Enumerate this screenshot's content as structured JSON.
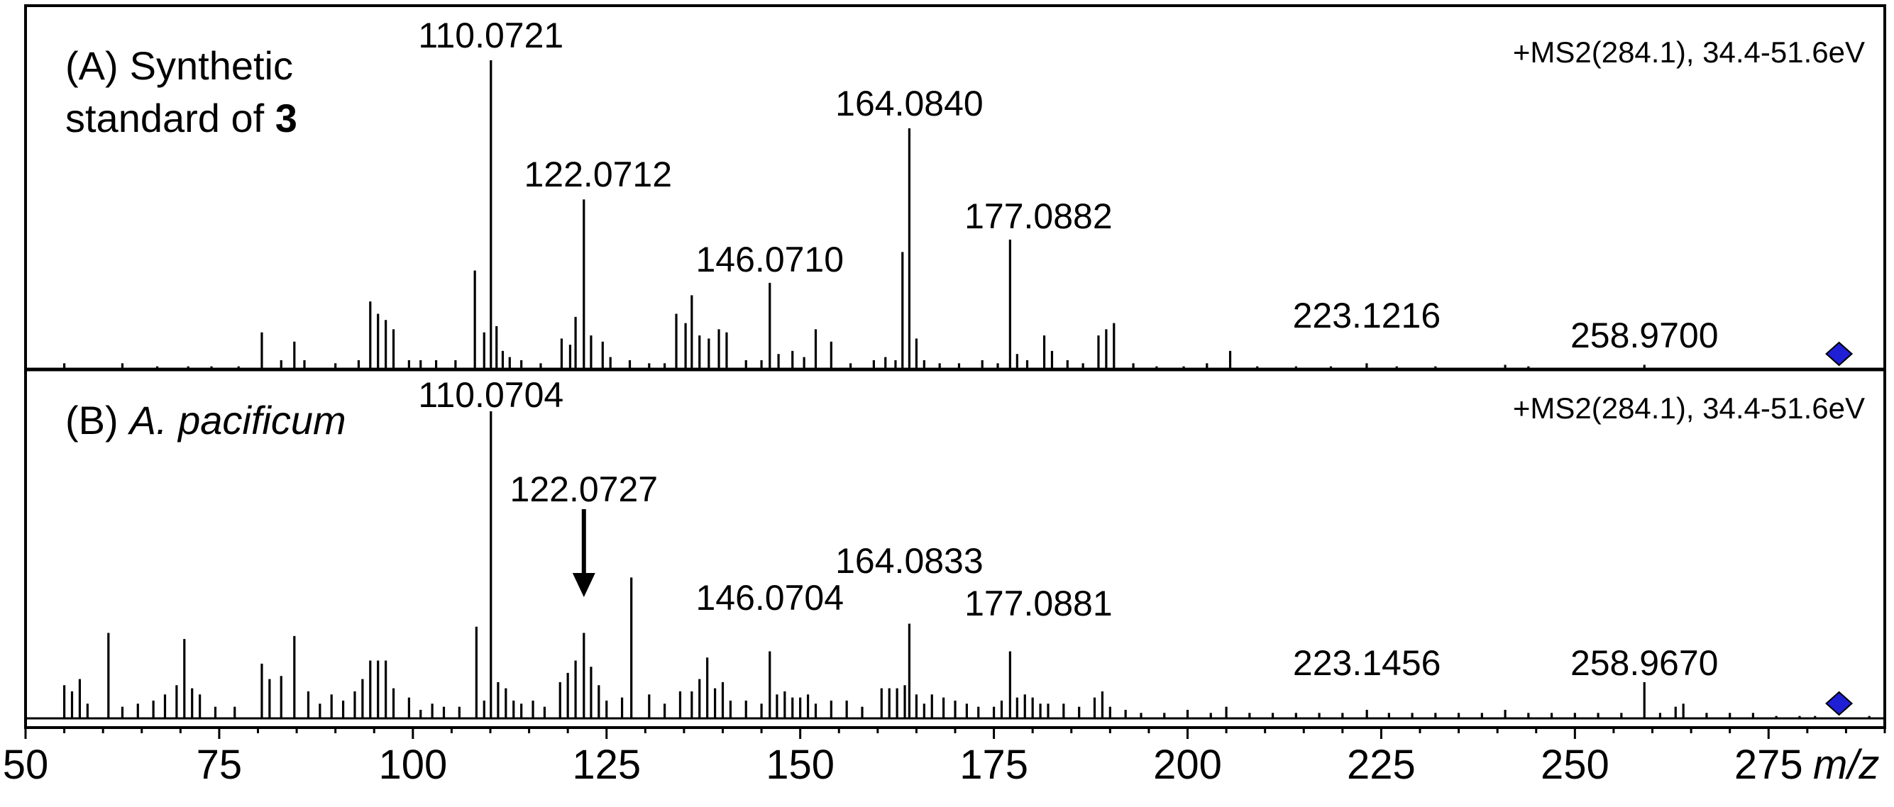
{
  "chart_data": [
    {
      "type": "line",
      "panel_label": "(A)",
      "title_line1": "Synthetic",
      "title_line2_prefix": "standard of ",
      "title_line2_bold": "3",
      "scan_info": "+MS2(284.1), 34.4-51.6eV",
      "xlim": [
        50,
        290
      ],
      "ylim": [
        0,
        100
      ],
      "precursor_mz": 284.1,
      "peaks_mz": [
        55.0,
        62.5,
        67.0,
        71.0,
        74.0,
        77.5,
        80.5,
        83.0,
        84.7,
        86.0,
        90.0,
        93.0,
        94.5,
        95.5,
        96.5,
        97.5,
        99.5,
        101.0,
        103.0,
        105.5,
        108.0,
        109.2,
        110.0721,
        110.8,
        111.6,
        112.5,
        114.0,
        116.5,
        119.2,
        120.3,
        121.0,
        122.0712,
        123.0,
        124.5,
        125.5,
        128.0,
        130.5,
        132.5,
        134.0,
        135.2,
        136.0,
        137.0,
        138.2,
        139.5,
        140.5,
        143.0,
        145.0,
        146.071,
        147.2,
        149.0,
        150.5,
        152.0,
        154.0,
        156.5,
        159.5,
        161.0,
        162.3,
        163.2,
        164.084,
        165.0,
        166.0,
        168.0,
        170.5,
        173.5,
        175.5,
        177.0882,
        178.0,
        179.3,
        181.5,
        182.5,
        184.5,
        186.5,
        188.5,
        189.5,
        190.5,
        193.0,
        196.0,
        199.5,
        202.5,
        205.5,
        209.0,
        214.0,
        218.5,
        223.1216,
        227.0,
        232.0,
        236.5,
        241.0,
        244.0,
        249.0,
        254.0,
        258.97,
        261.0,
        266.0,
        270.0,
        276.0
      ],
      "peaks_intensity": [
        2,
        2,
        1,
        1,
        1,
        1,
        12,
        3,
        9,
        3,
        2,
        3,
        22,
        18,
        16,
        13,
        3,
        3,
        3,
        3,
        32,
        12,
        100,
        14,
        6,
        4,
        3,
        2,
        10,
        8,
        17,
        55,
        11,
        9,
        4,
        3,
        2,
        2,
        18,
        15,
        24,
        11,
        10,
        13,
        12,
        3,
        3,
        28,
        5,
        6,
        4,
        13,
        9,
        2,
        3,
        4,
        3,
        38,
        78,
        10,
        3,
        2,
        2,
        3,
        2,
        42,
        5,
        3,
        11,
        6,
        3,
        2,
        11,
        13,
        15,
        2,
        1,
        1,
        2,
        6,
        1,
        1,
        1,
        2,
        1,
        1,
        0.5,
        1.5,
        1,
        0.5,
        0.5,
        1.5,
        0.5,
        0.5,
        0.5,
        0.5
      ],
      "annotations": [
        {
          "mz": 110.0721,
          "label": "110.0721"
        },
        {
          "mz": 122.0712,
          "label": "122.0712"
        },
        {
          "mz": 146.071,
          "label": "146.0710"
        },
        {
          "mz": 164.084,
          "label": "164.0840"
        },
        {
          "mz": 177.0882,
          "label": "177.0882"
        },
        {
          "mz": 223.1216,
          "label": "223.1216"
        },
        {
          "mz": 258.97,
          "label": "258.9700"
        }
      ]
    },
    {
      "type": "line",
      "panel_label": "(B)",
      "title_italic": "A. pacificum",
      "scan_info": "+MS2(284.1), 34.4-51.6eV",
      "xlim": [
        50,
        290
      ],
      "ylim": [
        0,
        100
      ],
      "precursor_mz": 284.1,
      "peaks_mz": [
        55.0,
        56.0,
        57.0,
        58.0,
        60.7,
        62.5,
        64.5,
        66.5,
        68.0,
        69.5,
        70.5,
        71.5,
        72.5,
        74.5,
        77.0,
        80.5,
        81.5,
        83.0,
        84.7,
        86.5,
        88.0,
        89.5,
        91.0,
        92.5,
        93.5,
        94.5,
        95.5,
        96.5,
        97.5,
        99.5,
        101.0,
        102.5,
        104.0,
        106.0,
        108.2,
        109.2,
        110.0704,
        111.0,
        112.0,
        113.0,
        114.0,
        115.5,
        117.0,
        119.0,
        120.0,
        121.0,
        122.0727,
        123.0,
        124.0,
        125.0,
        127.0,
        128.2,
        130.5,
        132.5,
        134.5,
        136.0,
        137.0,
        138.0,
        139.0,
        140.0,
        141.0,
        143.0,
        145.0,
        146.0704,
        147.0,
        148.0,
        149.0,
        150.0,
        151.0,
        152.0,
        154.0,
        156.0,
        158.0,
        160.5,
        161.5,
        162.5,
        163.5,
        164.0833,
        165.0,
        166.0,
        167.0,
        168.5,
        170.0,
        171.5,
        173.0,
        175.0,
        176.0,
        177.0881,
        178.0,
        179.0,
        180.0,
        181.0,
        182.0,
        184.0,
        186.0,
        188.0,
        189.0,
        190.0,
        192.0,
        194.0,
        197.0,
        200.0,
        203.0,
        205.0,
        208.0,
        211.0,
        214.0,
        217.0,
        220.0,
        223.1456,
        226.0,
        229.0,
        232.0,
        235.0,
        238.0,
        241.0,
        244.0,
        247.0,
        250.0,
        253.0,
        256.0,
        258.967,
        261.0,
        263.0,
        264.0,
        267.0,
        270.0,
        273.0,
        276.0,
        279.0,
        281.0,
        288.0
      ],
      "peaks_intensity": [
        11,
        9,
        13,
        5,
        28,
        4,
        5,
        6,
        8,
        11,
        26,
        10,
        8,
        4,
        4,
        18,
        13,
        14,
        27,
        9,
        5,
        8,
        6,
        9,
        13,
        19,
        19,
        19,
        10,
        7,
        3,
        5,
        4,
        4,
        30,
        6,
        100,
        12,
        10,
        6,
        5,
        6,
        4,
        12,
        15,
        19,
        28,
        17,
        11,
        6,
        7,
        46,
        8,
        5,
        9,
        9,
        13,
        20,
        10,
        12,
        6,
        6,
        5,
        22,
        8,
        9,
        7,
        7,
        8,
        5,
        6,
        6,
        4,
        10,
        10,
        10,
        11,
        31,
        8,
        5,
        8,
        7,
        6,
        5,
        4,
        4,
        6,
        22,
        7,
        8,
        7,
        5,
        5,
        5,
        4,
        7,
        9,
        4,
        3,
        2,
        2,
        3,
        2,
        4,
        2,
        2,
        2,
        2,
        2,
        3,
        2,
        2,
        2,
        2,
        2,
        3,
        2,
        2,
        2,
        2,
        2,
        12,
        2,
        4,
        5,
        2,
        2,
        2,
        1,
        1,
        1,
        1
      ],
      "annotations": [
        {
          "mz": 110.0704,
          "label": "110.0704"
        },
        {
          "mz": 122.0727,
          "label": "122.0727"
        },
        {
          "mz": 146.0704,
          "label": "146.0704"
        },
        {
          "mz": 164.0833,
          "label": "164.0833"
        },
        {
          "mz": 177.0881,
          "label": "177.0881"
        },
        {
          "mz": 223.1456,
          "label": "223.1456"
        },
        {
          "mz": 258.967,
          "label": "258.9670"
        }
      ]
    }
  ],
  "x_axis": {
    "ticks": [
      50,
      75,
      100,
      125,
      150,
      175,
      200,
      225,
      250,
      275
    ],
    "label": "m/z"
  },
  "colors": {
    "line": "#000000",
    "precursor_marker": "#1f1fd6"
  }
}
